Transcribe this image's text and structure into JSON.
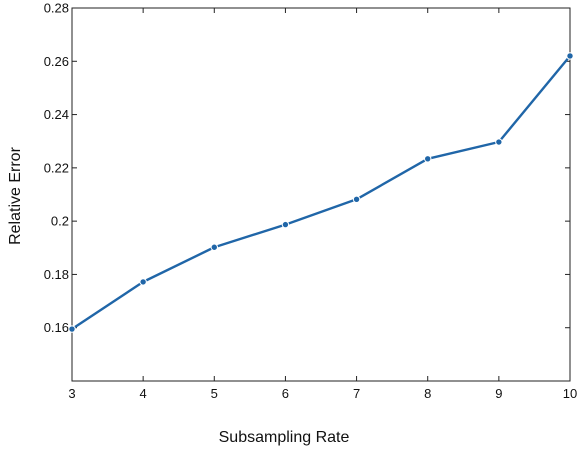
{
  "chart_data": {
    "type": "line",
    "title": "",
    "xlabel": "Subsampling Rate",
    "ylabel": "Relative Error",
    "xlim": [
      3,
      10
    ],
    "ylim": [
      0.14,
      0.28
    ],
    "grid": false,
    "x_ticks": [
      3,
      4,
      5,
      6,
      7,
      8,
      9,
      10
    ],
    "x_tick_labels": [
      "3",
      "4",
      "5",
      "6",
      "7",
      "8",
      "9",
      "10"
    ],
    "y_ticks": [
      0.16,
      0.18,
      0.2,
      0.22,
      0.24,
      0.26,
      0.28
    ],
    "y_tick_labels": [
      "0.16",
      "0.18",
      "0.2",
      "0.22",
      "0.24",
      "0.26",
      "0.28"
    ],
    "series": [
      {
        "color": "#2066a8",
        "marker": "circle",
        "x": [
          3,
          4,
          5,
          6,
          7,
          8,
          9,
          10
        ],
        "y": [
          0.1595,
          0.1772,
          0.1902,
          0.1987,
          0.2082,
          0.2234,
          0.2297,
          0.262
        ]
      }
    ]
  }
}
